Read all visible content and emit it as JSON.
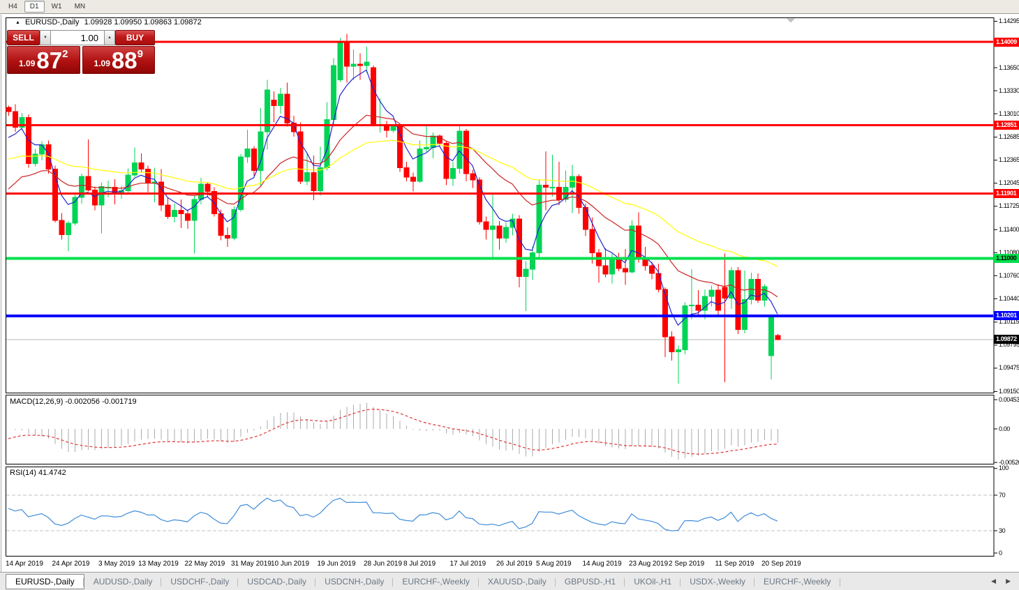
{
  "toolbar": {
    "timeframes": [
      {
        "label": "H4",
        "active": false
      },
      {
        "label": "D1",
        "active": true
      },
      {
        "label": "W1",
        "active": false
      },
      {
        "label": "MN",
        "active": false
      }
    ]
  },
  "icons": {
    "collapse": "▲",
    "spin_up": "▲",
    "spin_down": "▼",
    "tab_scroll_left": "◀",
    "tab_scroll_right": "▶",
    "shift_marker": "▼"
  },
  "trade_panel": {
    "sell_label": "SELL",
    "buy_label": "BUY",
    "volume": "1.00",
    "sell_price": {
      "small": "1.09",
      "big": "87",
      "sup": "2"
    },
    "buy_price": {
      "small": "1.09",
      "big": "88",
      "sup": "9"
    }
  },
  "chart_data": {
    "type": "candlestick",
    "title_symbol": "EURUSD-,Daily",
    "title_ohlc": "1.09928 1.09950 1.09863 1.09872",
    "candle_colors": {
      "bull": "#00d455",
      "bear": "#ff0000"
    },
    "price_ticks": [
      "1.14295",
      "1.13970",
      "1.13650",
      "1.13330",
      "1.13010",
      "1.12685",
      "1.12365",
      "1.12045",
      "1.11725",
      "1.11400",
      "1.11080",
      "1.10760",
      "1.10440",
      "1.10115",
      "1.09795",
      "1.09475",
      "1.09150"
    ],
    "date_ticks": [
      {
        "i": 0,
        "label": "14 Apr 2019"
      },
      {
        "i": 7,
        "label": "24 Apr 2019"
      },
      {
        "i": 14,
        "label": "3 May 2019"
      },
      {
        "i": 20,
        "label": "13 May 2019"
      },
      {
        "i": 27,
        "label": "22 May 2019"
      },
      {
        "i": 34,
        "label": "31 May 2019"
      },
      {
        "i": 40,
        "label": "10 Jun 2019"
      },
      {
        "i": 47,
        "label": "19 Jun 2019"
      },
      {
        "i": 54,
        "label": "28 Jun 2019"
      },
      {
        "i": 60,
        "label": "8 Jul 2019"
      },
      {
        "i": 67,
        "label": "17 Jul 2019"
      },
      {
        "i": 74,
        "label": "26 Jul 2019"
      },
      {
        "i": 80,
        "label": "5 Aug 2019"
      },
      {
        "i": 87,
        "label": "14 Aug 2019"
      },
      {
        "i": 94,
        "label": "23 Aug 2019"
      },
      {
        "i": 100,
        "label": "2 Sep 2019"
      },
      {
        "i": 107,
        "label": "11 Sep 2019"
      },
      {
        "i": 114,
        "label": "20 Sep 2019"
      }
    ],
    "hlines": [
      {
        "price": 1.14009,
        "label": "1.14009",
        "color": "#ff0000",
        "text_color": "#ffffff",
        "thickness": 3
      },
      {
        "price": 1.12851,
        "label": "1.12851",
        "color": "#ff0000",
        "text_color": "#ffffff",
        "thickness": 3
      },
      {
        "price": 1.11901,
        "label": "1.11901",
        "color": "#ff0000",
        "text_color": "#ffffff",
        "thickness": 3
      },
      {
        "price": 1.11,
        "label": "1.11000",
        "color": "#00e04d",
        "text_color": "#000000",
        "thickness": 4
      },
      {
        "price": 1.10201,
        "label": "1.10201",
        "color": "#0000ff",
        "text_color": "#ffffff",
        "thickness": 4
      }
    ],
    "current_price": {
      "value": 1.09872,
      "label": "1.09872",
      "line_color": "#b8b8b8",
      "badge_color": "#000000",
      "text_color": "#ffffff"
    },
    "moving_average_colors": [
      "#2323cc",
      "#cc2222",
      "#ffff00"
    ],
    "candles": [
      [
        1.131,
        1.1312,
        1.1298,
        1.1304
      ],
      [
        1.1304,
        1.1314,
        1.1276,
        1.1282
      ],
      [
        1.1282,
        1.1302,
        1.128,
        1.1296
      ],
      [
        1.1296,
        1.13,
        1.1226,
        1.1232
      ],
      [
        1.1232,
        1.1252,
        1.1228,
        1.1245
      ],
      [
        1.1245,
        1.1263,
        1.1236,
        1.1258
      ],
      [
        1.1258,
        1.1264,
        1.1218,
        1.1224
      ],
      [
        1.1224,
        1.1229,
        1.115,
        1.1153
      ],
      [
        1.1153,
        1.1163,
        1.1126,
        1.1133
      ],
      [
        1.1133,
        1.1152,
        1.111,
        1.1149
      ],
      [
        1.1149,
        1.1188,
        1.1146,
        1.1185
      ],
      [
        1.1185,
        1.1218,
        1.1176,
        1.1214
      ],
      [
        1.1214,
        1.1265,
        1.1193,
        1.1195
      ],
      [
        1.1195,
        1.12,
        1.1167,
        1.1174
      ],
      [
        1.1174,
        1.1205,
        1.1135,
        1.12
      ],
      [
        1.1198,
        1.1208,
        1.1185,
        1.1199
      ],
      [
        1.1199,
        1.121,
        1.1175,
        1.119
      ],
      [
        1.119,
        1.1201,
        1.1183,
        1.1194
      ],
      [
        1.1194,
        1.1225,
        1.119,
        1.1216
      ],
      [
        1.1216,
        1.1254,
        1.1213,
        1.1233
      ],
      [
        1.1233,
        1.1246,
        1.122,
        1.1224
      ],
      [
        1.1224,
        1.1229,
        1.1192,
        1.1205
      ],
      [
        1.1205,
        1.1226,
        1.1178,
        1.1206
      ],
      [
        1.1206,
        1.1224,
        1.1166,
        1.1174
      ],
      [
        1.1174,
        1.1184,
        1.1155,
        1.1158
      ],
      [
        1.1158,
        1.1176,
        1.115,
        1.1167
      ],
      [
        1.1167,
        1.1182,
        1.1142,
        1.1162
      ],
      [
        1.1162,
        1.1168,
        1.1141,
        1.1153
      ],
      [
        1.1153,
        1.1188,
        1.1107,
        1.1182
      ],
      [
        1.1182,
        1.1212,
        1.1175,
        1.1203
      ],
      [
        1.1203,
        1.1205,
        1.1186,
        1.1193
      ],
      [
        1.1193,
        1.1199,
        1.1158,
        1.1162
      ],
      [
        1.1162,
        1.1168,
        1.1125,
        1.1132
      ],
      [
        1.1132,
        1.1143,
        1.1116,
        1.1128
      ],
      [
        1.1128,
        1.1172,
        1.1125,
        1.1168
      ],
      [
        1.1168,
        1.1245,
        1.1165,
        1.1241
      ],
      [
        1.1241,
        1.1279,
        1.1233,
        1.1252
      ],
      [
        1.1252,
        1.1256,
        1.1215,
        1.1222
      ],
      [
        1.1222,
        1.1309,
        1.1201,
        1.1276
      ],
      [
        1.1276,
        1.1348,
        1.1251,
        1.1334
      ],
      [
        1.132,
        1.1332,
        1.1289,
        1.1312
      ],
      [
        1.1312,
        1.1337,
        1.1301,
        1.1328
      ],
      [
        1.1328,
        1.1344,
        1.1283,
        1.1288
      ],
      [
        1.1288,
        1.1298,
        1.1269,
        1.1276
      ],
      [
        1.1276,
        1.1289,
        1.1203,
        1.1207
      ],
      [
        1.1207,
        1.1247,
        1.1202,
        1.1219
      ],
      [
        1.1219,
        1.1243,
        1.1181,
        1.1194
      ],
      [
        1.1194,
        1.1255,
        1.1187,
        1.1226
      ],
      [
        1.1226,
        1.1317,
        1.1222,
        1.1293
      ],
      [
        1.1293,
        1.1378,
        1.1283,
        1.1368
      ],
      [
        1.1348,
        1.1406,
        1.1345,
        1.1401
      ],
      [
        1.1401,
        1.1412,
        1.1344,
        1.1367
      ],
      [
        1.1367,
        1.139,
        1.1348,
        1.137
      ],
      [
        1.137,
        1.1385,
        1.1348,
        1.1368
      ],
      [
        1.1368,
        1.1394,
        1.1358,
        1.1373
      ],
      [
        1.1365,
        1.1368,
        1.1283,
        1.1285
      ],
      [
        1.1285,
        1.1322,
        1.1275,
        1.1285
      ],
      [
        1.1285,
        1.1291,
        1.1268,
        1.1278
      ],
      [
        1.1278,
        1.1286,
        1.1275,
        1.1283
      ],
      [
        1.1283,
        1.1287,
        1.122,
        1.1226
      ],
      [
        1.1226,
        1.1234,
        1.1207,
        1.1213
      ],
      [
        1.1213,
        1.1219,
        1.1193,
        1.1207
      ],
      [
        1.1207,
        1.1264,
        1.1205,
        1.1252
      ],
      [
        1.1252,
        1.1286,
        1.1248,
        1.1254
      ],
      [
        1.1254,
        1.1275,
        1.1239,
        1.127
      ],
      [
        1.127,
        1.1272,
        1.1255,
        1.126
      ],
      [
        1.126,
        1.1264,
        1.1202,
        1.1211
      ],
      [
        1.1211,
        1.1234,
        1.1201,
        1.1225
      ],
      [
        1.1225,
        1.1285,
        1.1218,
        1.1277
      ],
      [
        1.1277,
        1.128,
        1.1207,
        1.1218
      ],
      [
        1.1218,
        1.1223,
        1.1198,
        1.1209
      ],
      [
        1.1209,
        1.1213,
        1.1147,
        1.1151
      ],
      [
        1.1151,
        1.1158,
        1.1126,
        1.114
      ],
      [
        1.114,
        1.1188,
        1.1101,
        1.1145
      ],
      [
        1.1145,
        1.1152,
        1.1112,
        1.1128
      ],
      [
        1.1128,
        1.115,
        1.1122,
        1.1143
      ],
      [
        1.1143,
        1.1162,
        1.1132,
        1.1155
      ],
      [
        1.1155,
        1.116,
        1.106,
        1.1075
      ],
      [
        1.1075,
        1.1096,
        1.1027,
        1.1085
      ],
      [
        1.1085,
        1.1117,
        1.107,
        1.1108
      ],
      [
        1.1108,
        1.1209,
        1.1102,
        1.1202
      ],
      [
        1.1202,
        1.1249,
        1.1167,
        1.1199
      ],
      [
        1.1199,
        1.1244,
        1.1186,
        1.1199
      ],
      [
        1.1199,
        1.1234,
        1.1174,
        1.1182
      ],
      [
        1.1182,
        1.1222,
        1.1178,
        1.1199
      ],
      [
        1.1199,
        1.123,
        1.1163,
        1.1214
      ],
      [
        1.1214,
        1.1217,
        1.1162,
        1.1171
      ],
      [
        1.1171,
        1.1176,
        1.1131,
        1.114
      ],
      [
        1.114,
        1.1157,
        1.1093,
        1.1108
      ],
      [
        1.1108,
        1.1113,
        1.1066,
        1.109
      ],
      [
        1.109,
        1.1114,
        1.1074,
        1.1078
      ],
      [
        1.1078,
        1.1107,
        1.1065,
        1.1099
      ],
      [
        1.1099,
        1.1108,
        1.1082,
        1.1086
      ],
      [
        1.1086,
        1.1113,
        1.1063,
        1.1081
      ],
      [
        1.1081,
        1.1153,
        1.1079,
        1.1145
      ],
      [
        1.1145,
        1.1164,
        1.1094,
        1.1101
      ],
      [
        1.1101,
        1.1116,
        1.1083,
        1.109
      ],
      [
        1.109,
        1.1095,
        1.1071,
        1.1079
      ],
      [
        1.1079,
        1.1093,
        1.1053,
        1.1057
      ],
      [
        1.1057,
        1.106,
        1.0963,
        1.0991
      ],
      [
        1.0991,
        1.0999,
        1.0958,
        1.097
      ],
      [
        1.097,
        1.0979,
        1.0926,
        1.0973
      ],
      [
        1.0973,
        1.1039,
        1.0967,
        1.1034
      ],
      [
        1.1034,
        1.1085,
        1.1015,
        1.1035
      ],
      [
        1.1035,
        1.1056,
        1.1022,
        1.1028
      ],
      [
        1.1028,
        1.1057,
        1.1015,
        1.1047
      ],
      [
        1.1047,
        1.1062,
        1.1033,
        1.1056
      ],
      [
        1.1056,
        1.1064,
        1.102,
        1.1028
      ],
      [
        1.106,
        1.1107,
        1.0928,
        1.1045
      ],
      [
        1.1045,
        1.1088,
        1.103,
        1.1083
      ],
      [
        1.1083,
        1.1088,
        1.0995,
        1.1001
      ],
      [
        1.1001,
        1.1083,
        1.0996,
        1.1043
      ],
      [
        1.1043,
        1.108,
        1.1036,
        1.1071
      ],
      [
        1.1071,
        1.1079,
        1.1038,
        1.1042
      ],
      [
        1.1042,
        1.1064,
        1.1033,
        1.1061
      ],
      [
        1.0965,
        1.1022,
        1.0932,
        1.1018
      ],
      [
        1.09928,
        1.0995,
        1.09863,
        1.09872
      ]
    ],
    "macd": {
      "name": "MACD(12,26,9)",
      "values": "-0.002056 -0.001719",
      "axis_max": "0.004536",
      "axis_zero": "0.00",
      "axis_min": "-0.005205",
      "hist_color": "#ababab",
      "signal_color": "#e03535"
    },
    "rsi": {
      "name": "RSI(14)",
      "value": "41.4742",
      "axis": [
        "100",
        "70",
        "30",
        "0"
      ],
      "levels": [
        70,
        30
      ],
      "line_color": "#3f8cdb",
      "level_color": "#c0c0c0"
    }
  },
  "tabs": {
    "items": [
      {
        "label": "EURUSD-,Daily",
        "active": true
      },
      {
        "label": "AUDUSD-,Daily",
        "active": false
      },
      {
        "label": "USDCHF-,Daily",
        "active": false
      },
      {
        "label": "USDCAD-,Daily",
        "active": false
      },
      {
        "label": "USDCNH-,Daily",
        "active": false
      },
      {
        "label": "EURCHF-,Weekly",
        "active": false
      },
      {
        "label": "XAUUSD-,Daily",
        "active": false
      },
      {
        "label": "GBPUSD-,H1",
        "active": false
      },
      {
        "label": "UKOil-,H1",
        "active": false
      },
      {
        "label": "USDX-,Weekly",
        "active": false
      },
      {
        "label": "EURCHF-,Weekly",
        "active": false
      }
    ]
  }
}
